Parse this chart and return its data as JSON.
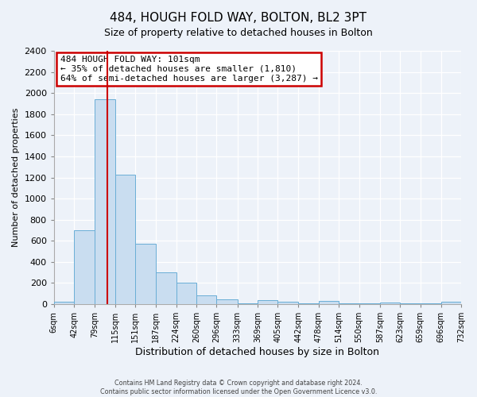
{
  "title": "484, HOUGH FOLD WAY, BOLTON, BL2 3PT",
  "subtitle": "Size of property relative to detached houses in Bolton",
  "xlabel": "Distribution of detached houses by size in Bolton",
  "ylabel": "Number of detached properties",
  "bar_edges": [
    6,
    42,
    79,
    115,
    151,
    187,
    224,
    260,
    296,
    333,
    369,
    405,
    442,
    478,
    514,
    550,
    587,
    623,
    659,
    696,
    732
  ],
  "bar_heights": [
    20,
    700,
    1940,
    1230,
    575,
    300,
    200,
    80,
    45,
    5,
    35,
    20,
    5,
    30,
    10,
    5,
    15,
    5,
    5,
    20
  ],
  "bar_color": "#c9ddf0",
  "bar_edge_color": "#6aaed6",
  "red_line_x": 101,
  "annotation_text": "484 HOUGH FOLD WAY: 101sqm\n← 35% of detached houses are smaller (1,810)\n64% of semi-detached houses are larger (3,287) →",
  "annotation_box_color": "white",
  "annotation_box_edge_color": "#cc0000",
  "ylim": [
    0,
    2400
  ],
  "yticks": [
    0,
    200,
    400,
    600,
    800,
    1000,
    1200,
    1400,
    1600,
    1800,
    2000,
    2200,
    2400
  ],
  "tick_labels": [
    "6sqm",
    "42sqm",
    "79sqm",
    "115sqm",
    "151sqm",
    "187sqm",
    "224sqm",
    "260sqm",
    "296sqm",
    "333sqm",
    "369sqm",
    "405sqm",
    "442sqm",
    "478sqm",
    "514sqm",
    "550sqm",
    "587sqm",
    "623sqm",
    "659sqm",
    "696sqm",
    "732sqm"
  ],
  "footer_line1": "Contains HM Land Registry data © Crown copyright and database right 2024.",
  "footer_line2": "Contains public sector information licensed under the Open Government Licence v3.0.",
  "fig_bg_color": "#edf2f9",
  "plot_bg_color": "#edf2f9",
  "grid_color": "white",
  "title_fontsize": 11,
  "subtitle_fontsize": 9,
  "xlabel_fontsize": 9,
  "ylabel_fontsize": 8,
  "ytick_fontsize": 8,
  "xtick_fontsize": 7,
  "annot_fontsize": 8
}
